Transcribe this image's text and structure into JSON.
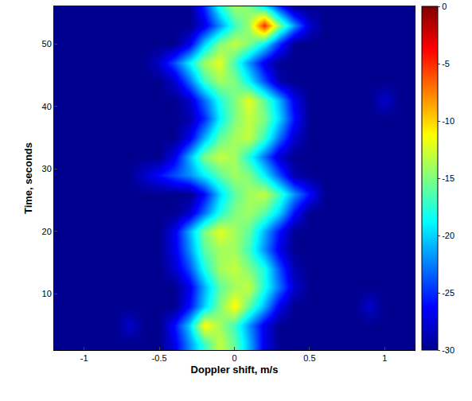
{
  "chart_data": {
    "type": "heatmap",
    "xlabel": "Doppler shift, m/s",
    "ylabel": "Time, seconds",
    "x": [
      -1.2,
      -1.1,
      -1.0,
      -0.9,
      -0.8,
      -0.7,
      -0.6,
      -0.5,
      -0.4,
      -0.3,
      -0.2,
      -0.1,
      0.0,
      0.1,
      0.2,
      0.3,
      0.4,
      0.5,
      0.6,
      0.7,
      0.8,
      0.9,
      1.0,
      1.1,
      1.2
    ],
    "y": [
      2,
      5,
      8,
      11,
      14,
      17,
      20,
      23,
      26,
      29,
      32,
      35,
      38,
      41,
      44,
      47,
      50,
      53,
      56
    ],
    "z": [
      [
        -30,
        -30,
        -30,
        -30,
        -30,
        -30,
        -30,
        -30,
        -27,
        -22,
        -17,
        -13,
        -16,
        -21,
        -27,
        -30,
        -30,
        -30,
        -30,
        -30,
        -30,
        -30,
        -30,
        -30,
        -30
      ],
      [
        -30,
        -30,
        -30,
        -30,
        -30,
        -28,
        -30,
        -30,
        -26,
        -20,
        -11,
        -14,
        -17,
        -22,
        -27,
        -30,
        -30,
        -30,
        -30,
        -30,
        -30,
        -30,
        -30,
        -30,
        -30
      ],
      [
        -30,
        -30,
        -30,
        -30,
        -30,
        -30,
        -30,
        -30,
        -30,
        -26,
        -20,
        -15,
        -11,
        -16,
        -21,
        -27,
        -30,
        -30,
        -30,
        -30,
        -30,
        -28,
        -30,
        -30,
        -30
      ],
      [
        -30,
        -30,
        -30,
        -30,
        -30,
        -30,
        -30,
        -30,
        -30,
        -27,
        -21,
        -16,
        -14,
        -13,
        -18,
        -23,
        -28,
        -30,
        -30,
        -30,
        -30,
        -30,
        -30,
        -30,
        -30
      ],
      [
        -30,
        -30,
        -30,
        -30,
        -30,
        -30,
        -30,
        -30,
        -28,
        -24,
        -18,
        -14,
        -13,
        -15,
        -18,
        -24,
        -29,
        -30,
        -30,
        -30,
        -30,
        -30,
        -30,
        -30,
        -30
      ],
      [
        -30,
        -30,
        -30,
        -30,
        -30,
        -30,
        -30,
        -30,
        -27,
        -22,
        -16,
        -14,
        -14,
        -17,
        -22,
        -27,
        -30,
        -30,
        -30,
        -30,
        -30,
        -30,
        -30,
        -30,
        -30
      ],
      [
        -30,
        -30,
        -30,
        -30,
        -30,
        -30,
        -30,
        -30,
        -27,
        -21,
        -15,
        -12,
        -14,
        -16,
        -21,
        -26,
        -30,
        -30,
        -30,
        -30,
        -30,
        -30,
        -30,
        -30,
        -30
      ],
      [
        -30,
        -30,
        -30,
        -30,
        -30,
        -30,
        -30,
        -30,
        -30,
        -28,
        -23,
        -18,
        -15,
        -14,
        -16,
        -20,
        -26,
        -30,
        -30,
        -30,
        -30,
        -30,
        -30,
        -30,
        -30
      ],
      [
        -30,
        -30,
        -30,
        -30,
        -30,
        -30,
        -30,
        -30,
        -30,
        -30,
        -26,
        -20,
        -16,
        -14,
        -13,
        -17,
        -22,
        -26,
        -30,
        -30,
        -30,
        -30,
        -30,
        -30,
        -30
      ],
      [
        -30,
        -30,
        -30,
        -30,
        -30,
        -30,
        -28,
        -26,
        -24,
        -22,
        -19,
        -16,
        -14,
        -15,
        -19,
        -24,
        -29,
        -30,
        -30,
        -30,
        -30,
        -30,
        -30,
        -30,
        -30
      ],
      [
        -30,
        -30,
        -30,
        -30,
        -30,
        -30,
        -30,
        -30,
        -27,
        -21,
        -15,
        -13,
        -14,
        -18,
        -23,
        -28,
        -30,
        -30,
        -30,
        -30,
        -30,
        -30,
        -30,
        -30,
        -30
      ],
      [
        -30,
        -30,
        -30,
        -30,
        -30,
        -30,
        -30,
        -30,
        -30,
        -27,
        -21,
        -16,
        -14,
        -13,
        -17,
        -23,
        -28,
        -30,
        -30,
        -30,
        -30,
        -30,
        -30,
        -30,
        -30
      ],
      [
        -30,
        -30,
        -30,
        -30,
        -30,
        -30,
        -30,
        -30,
        -30,
        -29,
        -25,
        -19,
        -15,
        -13,
        -15,
        -20,
        -26,
        -30,
        -30,
        -30,
        -30,
        -30,
        -30,
        -30,
        -30
      ],
      [
        -30,
        -30,
        -30,
        -30,
        -30,
        -30,
        -30,
        -30,
        -30,
        -28,
        -23,
        -18,
        -15,
        -12,
        -16,
        -21,
        -27,
        -30,
        -30,
        -30,
        -30,
        -30,
        -28,
        -30,
        -30
      ],
      [
        -30,
        -30,
        -30,
        -30,
        -30,
        -30,
        -30,
        -30,
        -28,
        -23,
        -17,
        -14,
        -15,
        -19,
        -24,
        -29,
        -30,
        -30,
        -30,
        -30,
        -30,
        -30,
        -30,
        -30,
        -30
      ],
      [
        -30,
        -30,
        -30,
        -30,
        -30,
        -30,
        -30,
        -28,
        -24,
        -19,
        -14,
        -12,
        -17,
        -22,
        -27,
        -30,
        -30,
        -30,
        -30,
        -30,
        -30,
        -30,
        -30,
        -30,
        -30
      ],
      [
        -30,
        -30,
        -30,
        -30,
        -30,
        -30,
        -30,
        -30,
        -30,
        -27,
        -20,
        -15,
        -13,
        -15,
        -19,
        -25,
        -30,
        -30,
        -30,
        -30,
        -30,
        -30,
        -30,
        -30,
        -30
      ],
      [
        -30,
        -30,
        -30,
        -30,
        -30,
        -30,
        -30,
        -30,
        -30,
        -30,
        -27,
        -22,
        -17,
        -14,
        -5,
        -15,
        -22,
        -28,
        -30,
        -30,
        -30,
        -30,
        -30,
        -30,
        -30
      ],
      [
        -30,
        -30,
        -30,
        -30,
        -30,
        -30,
        -30,
        -30,
        -30,
        -30,
        -25,
        -18,
        -14,
        -15,
        -19,
        -25,
        -30,
        -30,
        -30,
        -30,
        -30,
        -30,
        -30,
        -30,
        -30
      ]
    ],
    "xlim": [
      -1.2,
      1.2
    ],
    "xticks": [
      -1,
      -0.5,
      0,
      0.5,
      1
    ],
    "ylim": [
      1,
      56
    ],
    "yticks": [
      10,
      20,
      30,
      40,
      50
    ],
    "colorbar_range": [
      -30,
      0
    ],
    "colorbar_ticks": [
      0,
      -5,
      -10,
      -15,
      -20,
      -25,
      -30
    ]
  }
}
